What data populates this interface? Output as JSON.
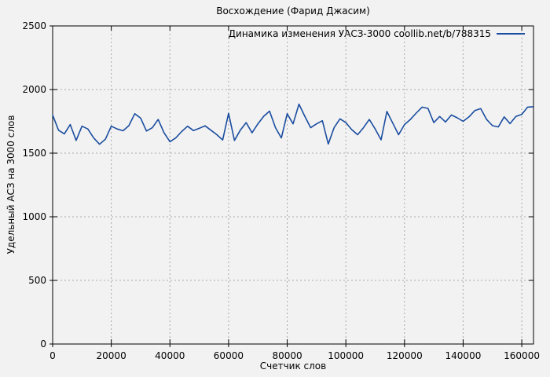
{
  "page": {
    "background": "#f2f2f2",
    "border_color": "#000000",
    "grid_color": "#a9a9a9"
  },
  "chart_data": {
    "type": "line",
    "title": "Восхождение (Фарид Джасим)",
    "xlabel": "Счетчик слов",
    "ylabel": "Удельный АСЗ на 3000 слов",
    "xlim": [
      0,
      164000
    ],
    "ylim": [
      0,
      2500
    ],
    "xticks": [
      0,
      20000,
      40000,
      60000,
      80000,
      100000,
      120000,
      140000,
      160000
    ],
    "yticks": [
      0,
      500,
      1000,
      1500,
      2000,
      2500
    ],
    "grid": "dashed",
    "legend_position": "top-right-inside",
    "series": [
      {
        "name": "Динамика изменения УАСЗ-3000 coollib.net/b/788315",
        "color": "#1a4da0",
        "x": [
          0,
          2000,
          4000,
          6000,
          8000,
          10000,
          12000,
          14000,
          16000,
          18000,
          20000,
          22000,
          24000,
          26000,
          28000,
          30000,
          32000,
          34000,
          36000,
          38000,
          40000,
          42000,
          44000,
          46000,
          48000,
          50000,
          52000,
          54000,
          56000,
          58000,
          60000,
          62000,
          64000,
          66000,
          68000,
          70000,
          72000,
          74000,
          76000,
          78000,
          80000,
          82000,
          84000,
          86000,
          88000,
          90000,
          92000,
          94000,
          96000,
          98000,
          100000,
          102000,
          104000,
          106000,
          108000,
          110000,
          112000,
          114000,
          116000,
          118000,
          120000,
          122000,
          124000,
          126000,
          128000,
          130000,
          132000,
          134000,
          136000,
          138000,
          140000,
          142000,
          144000,
          146000,
          148000,
          150000,
          152000,
          154000,
          156000,
          158000,
          160000,
          162000,
          163800
        ],
        "y": [
          1800,
          1680,
          1652,
          1725,
          1600,
          1712,
          1690,
          1620,
          1570,
          1610,
          1712,
          1690,
          1676,
          1716,
          1810,
          1775,
          1674,
          1700,
          1765,
          1660,
          1590,
          1620,
          1670,
          1712,
          1678,
          1695,
          1715,
          1680,
          1645,
          1604,
          1813,
          1600,
          1680,
          1740,
          1660,
          1730,
          1790,
          1830,
          1700,
          1620,
          1810,
          1730,
          1885,
          1790,
          1700,
          1730,
          1755,
          1572,
          1700,
          1770,
          1740,
          1685,
          1645,
          1700,
          1765,
          1690,
          1605,
          1828,
          1736,
          1645,
          1725,
          1765,
          1815,
          1862,
          1852,
          1740,
          1788,
          1745,
          1800,
          1778,
          1750,
          1785,
          1835,
          1850,
          1765,
          1716,
          1706,
          1785,
          1732,
          1788,
          1805,
          1862,
          1865
        ]
      }
    ]
  }
}
